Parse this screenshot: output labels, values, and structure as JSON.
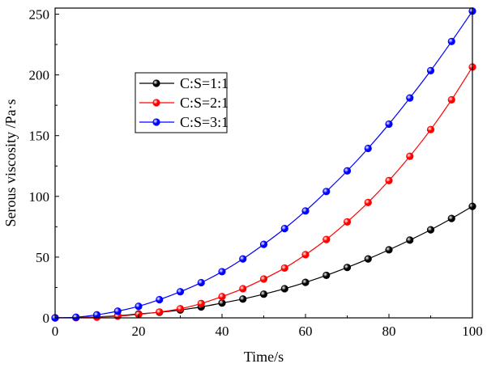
{
  "chart_data": {
    "type": "line",
    "xlabel": "Time/s",
    "ylabel": "Serous viscosity /Pa·s",
    "xlim": [
      0,
      100
    ],
    "ylim": [
      0,
      255
    ],
    "xticks": [
      0,
      20,
      40,
      60,
      80,
      100
    ],
    "yticks": [
      0,
      50,
      100,
      150,
      200,
      250
    ],
    "legend_position": "upper-left",
    "x": [
      0,
      5,
      10,
      15,
      20,
      25,
      30,
      35,
      40,
      45,
      50,
      55,
      60,
      65,
      70,
      75,
      80,
      85,
      90,
      95,
      100
    ],
    "series": [
      {
        "name": "C:S=1:1",
        "color": "#000000",
        "values": [
          0,
          0.2,
          0.8,
          1.8,
          3.2,
          4.6,
          6.5,
          9.0,
          12.2,
          15.5,
          19.5,
          24.0,
          29.2,
          35.0,
          41.5,
          48.5,
          56.0,
          64.0,
          72.5,
          81.8,
          91.8
        ]
      },
      {
        "name": "C:S=2:1",
        "color": "#ff0000",
        "values": [
          0,
          0.2,
          0.6,
          1.4,
          2.8,
          4.8,
          7.5,
          11.8,
          17.5,
          24.0,
          32.0,
          41.0,
          52.0,
          64.5,
          79.0,
          95.0,
          113.0,
          133.0,
          155.0,
          179.5,
          206.5
        ]
      },
      {
        "name": "C:S=3:1",
        "color": "#0000ff",
        "values": [
          0,
          0.5,
          2.5,
          5.5,
          9.5,
          15.0,
          21.5,
          29.0,
          38.0,
          48.5,
          60.5,
          73.5,
          88.0,
          104.0,
          121.0,
          139.5,
          159.5,
          181.0,
          203.5,
          227.5,
          252.5
        ]
      }
    ]
  }
}
